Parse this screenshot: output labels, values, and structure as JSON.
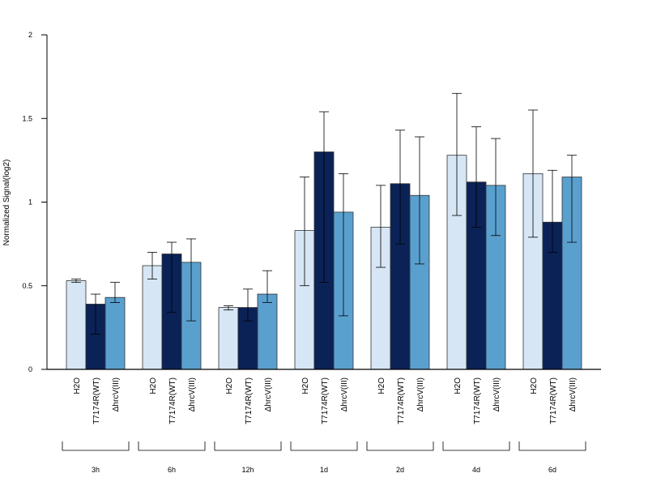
{
  "chart_data": {
    "type": "bar",
    "title": "",
    "xlabel": "",
    "ylabel": "Normalized Signal(log2)",
    "ylim": [
      0,
      2
    ],
    "yticks": [
      0,
      0.5,
      1,
      1.5,
      2
    ],
    "ytick_labels": [
      "0",
      "0.5",
      "1",
      "1.5",
      "2"
    ],
    "categories": [
      "3h",
      "6h",
      "12h",
      "1d",
      "2d",
      "4d",
      "6d"
    ],
    "series": [
      {
        "name": "H2O",
        "color": "#d6e6f5",
        "values": [
          0.53,
          0.62,
          0.37,
          0.83,
          0.85,
          1.28,
          1.17
        ],
        "err_low": [
          0.52,
          0.54,
          0.355,
          0.5,
          0.61,
          0.92,
          0.79
        ],
        "err_high": [
          0.54,
          0.7,
          0.38,
          1.15,
          1.1,
          1.65,
          1.55
        ]
      },
      {
        "name": "T7174R(WT)",
        "color": "#0b2257",
        "values": [
          0.39,
          0.69,
          0.37,
          1.3,
          1.11,
          1.12,
          0.88
        ],
        "err_low": [
          0.21,
          0.34,
          0.29,
          0.52,
          0.75,
          0.85,
          0.7
        ],
        "err_high": [
          0.45,
          0.76,
          0.48,
          1.54,
          1.43,
          1.45,
          1.19
        ]
      },
      {
        "name": "ΔhrcV(III)",
        "color": "#5aa0cf",
        "values": [
          0.43,
          0.64,
          0.45,
          0.94,
          1.04,
          1.1,
          1.15
        ],
        "err_low": [
          0.4,
          0.29,
          0.4,
          0.32,
          0.63,
          0.8,
          0.76
        ],
        "err_high": [
          0.52,
          0.78,
          0.59,
          1.17,
          1.39,
          1.38,
          1.28
        ]
      }
    ]
  }
}
